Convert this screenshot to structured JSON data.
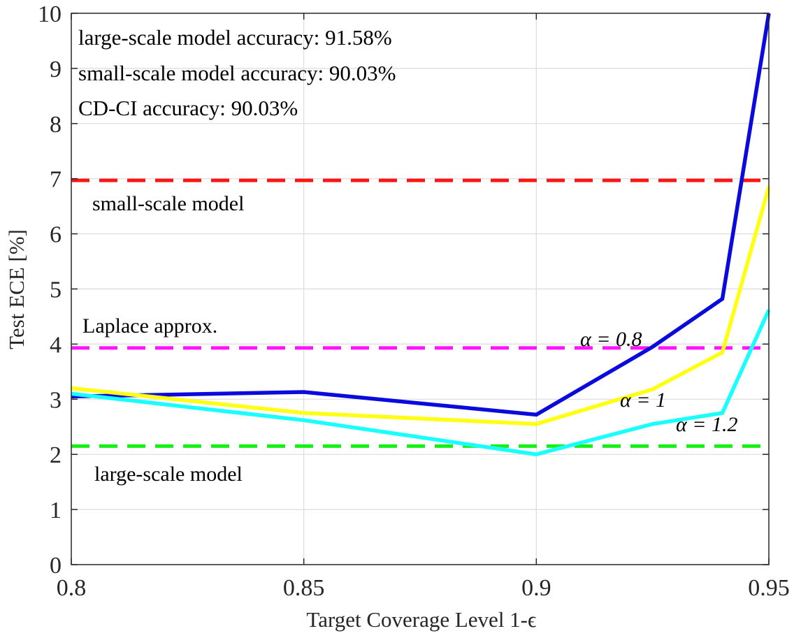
{
  "chart_data": {
    "type": "line",
    "xlabel": "Target Coverage Level 1-ϵ",
    "ylabel": "Test ECE [%]",
    "xlim": [
      0.8,
      0.95
    ],
    "ylim": [
      0,
      10
    ],
    "xticks": [
      "0.8",
      "0.85",
      "0.9",
      "0.95"
    ],
    "xtick_values": [
      0.8,
      0.85,
      0.9,
      0.95
    ],
    "yticks": [
      "0",
      "1",
      "2",
      "3",
      "4",
      "5",
      "6",
      "7",
      "8",
      "9",
      "10"
    ],
    "ytick_values": [
      0,
      1,
      2,
      3,
      4,
      5,
      6,
      7,
      8,
      9,
      10
    ],
    "grid": true,
    "series": [
      {
        "label": "α = 0.8",
        "color": "#0a0adc",
        "style": "solid",
        "x": [
          0.8,
          0.85,
          0.9,
          0.925,
          0.94,
          0.95
        ],
        "y": [
          3.05,
          3.13,
          2.72,
          3.95,
          4.82,
          10.0
        ]
      },
      {
        "label": "α = 1",
        "color": "#ffff14",
        "style": "solid",
        "x": [
          0.8,
          0.85,
          0.9,
          0.925,
          0.94,
          0.95
        ],
        "y": [
          3.2,
          2.75,
          2.55,
          3.18,
          3.85,
          6.85
        ]
      },
      {
        "label": "α = 1.2",
        "color": "#19ffff",
        "style": "solid",
        "x": [
          0.8,
          0.85,
          0.9,
          0.925,
          0.94,
          0.95
        ],
        "y": [
          3.1,
          2.62,
          2.0,
          2.55,
          2.75,
          4.62
        ]
      },
      {
        "label": "small-scale model",
        "color": "#ff1414",
        "style": "dashed",
        "x": [
          0.8,
          0.95
        ],
        "y": [
          6.97,
          6.97
        ]
      },
      {
        "label": "Laplace approx.",
        "color": "#ff14ff",
        "style": "dashed",
        "x": [
          0.8,
          0.95
        ],
        "y": [
          3.93,
          3.93
        ]
      },
      {
        "label": "large-scale model",
        "color": "#14f014",
        "style": "dashed",
        "x": [
          0.8,
          0.95
        ],
        "y": [
          2.15,
          2.15
        ]
      }
    ],
    "annotations": [
      "large-scale model accuracy: 91.58%",
      "small-scale model accuracy: 90.03%",
      "CD-CI accuracy: 90.03%"
    ]
  }
}
